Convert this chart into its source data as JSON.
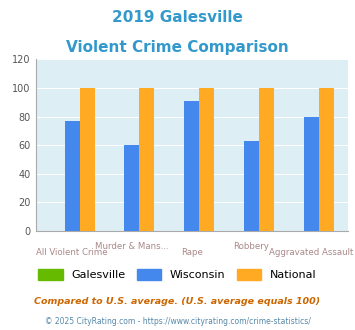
{
  "title_line1": "2019 Galesville",
  "title_line2": "Violent Crime Comparison",
  "title_color": "#3399cc",
  "categories": [
    "All Violent Crime",
    "Murder & Mans...",
    "Rape",
    "Robbery",
    "Aggravated Assault"
  ],
  "cat_line1": [
    "",
    "Murder & Mans...",
    "",
    "Robbery",
    ""
  ],
  "cat_line2": [
    "All Violent Crime",
    "",
    "Rape",
    "",
    "Aggravated Assault"
  ],
  "galesville": [
    0,
    0,
    0,
    0,
    0
  ],
  "wisconsin": [
    77,
    60,
    91,
    63,
    80
  ],
  "national": [
    100,
    100,
    100,
    100,
    100
  ],
  "galesville_color": "#66bb00",
  "wisconsin_color": "#4488ee",
  "national_color": "#ffaa22",
  "ylim": [
    0,
    120
  ],
  "yticks": [
    0,
    20,
    40,
    60,
    80,
    100,
    120
  ],
  "background_color": "#ddeef5",
  "legend_labels": [
    "Galesville",
    "Wisconsin",
    "National"
  ],
  "footnote1": "Compared to U.S. average. (U.S. average equals 100)",
  "footnote2": "© 2025 CityRating.com - https://www.cityrating.com/crime-statistics/",
  "footnote1_color": "#cc6600",
  "footnote2_color": "#5588aa",
  "bar_width": 0.25
}
